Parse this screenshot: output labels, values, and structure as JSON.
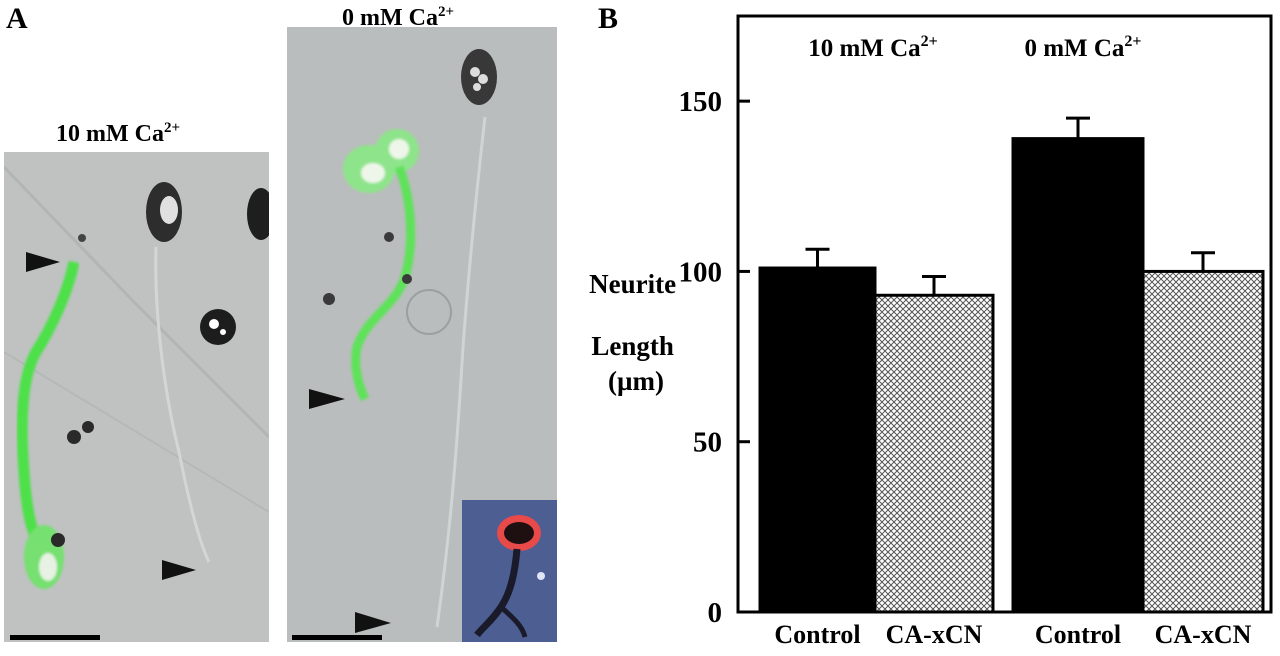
{
  "figure": {
    "panel_a_letter": "A",
    "panel_b_letter": "B",
    "image_left": {
      "title_main": "10 mM Ca",
      "title_sup": "2+"
    },
    "image_right": {
      "title_main": "0 mM Ca",
      "title_sup": "2+"
    }
  },
  "chart_data": {
    "type": "bar",
    "groups": [
      {
        "label_main": "10 mM Ca",
        "label_sup": "2+"
      },
      {
        "label_main": "0 mM Ca",
        "label_sup": "2+"
      }
    ],
    "categories": [
      "Control",
      "CA-xCN",
      "Control",
      "CA-xCN"
    ],
    "values": [
      101,
      93,
      139,
      100
    ],
    "errors": [
      5.5,
      5.5,
      6,
      5.5
    ],
    "fills": [
      "black",
      "crosshatch",
      "black",
      "crosshatch"
    ],
    "ylabel_lines": [
      "Neurite",
      "Length",
      "(µm)"
    ],
    "yticks": [
      0,
      50,
      100,
      150
    ],
    "ylim": [
      0,
      175
    ],
    "grid": false,
    "colors": {
      "control": "#000000",
      "crosshatch_bg": "#ffffff",
      "crosshatch_line": "#555555"
    }
  }
}
